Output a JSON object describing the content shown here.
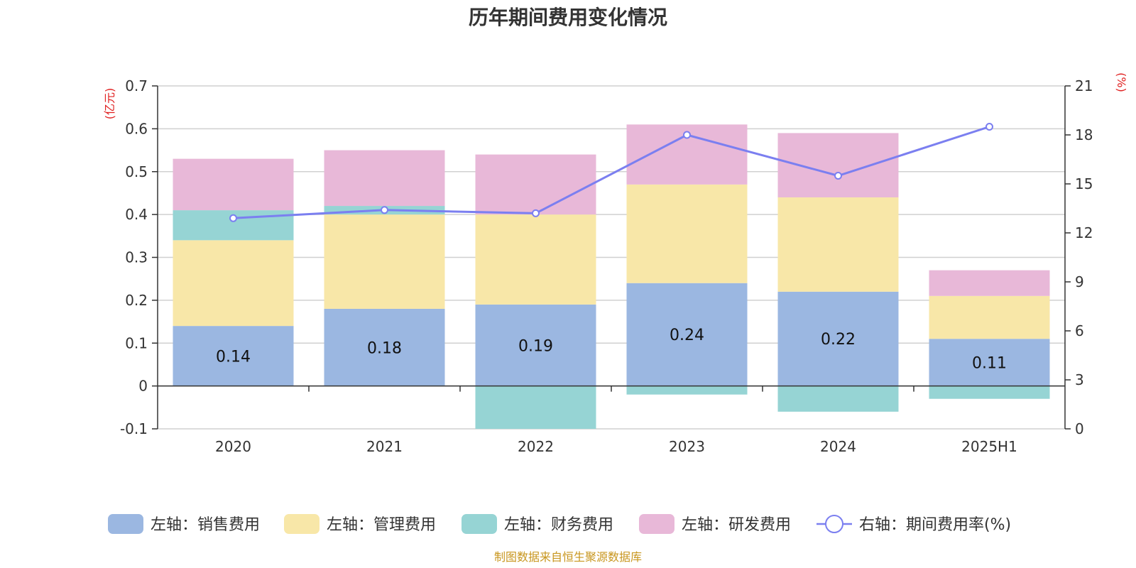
{
  "chart_data": {
    "type": "bar",
    "title": "历年期间费用变化情况",
    "categories": [
      "2020",
      "2021",
      "2022",
      "2023",
      "2024",
      "2025H1"
    ],
    "stacked": true,
    "left_axis": {
      "unit_label": "(亿元)",
      "ylim": [
        -0.1,
        0.7
      ],
      "ticks": [
        "-0.1",
        "0",
        "0.1",
        "0.2",
        "0.3",
        "0.4",
        "0.5",
        "0.6",
        "0.7"
      ]
    },
    "right_axis": {
      "unit_label": "(%)",
      "ylim": [
        0,
        21
      ],
      "ticks": [
        "0",
        "3",
        "6",
        "9",
        "12",
        "15",
        "18",
        "21"
      ]
    },
    "series": [
      {
        "name": "左轴：销售费用",
        "axis": "left",
        "color": "#9bb7e1",
        "values": [
          0.14,
          0.18,
          0.19,
          0.24,
          0.22,
          0.11
        ],
        "labels": [
          "0.14",
          "0.18",
          "0.19",
          "0.24",
          "0.22",
          "0.11"
        ]
      },
      {
        "name": "左轴：管理费用",
        "axis": "left",
        "color": "#f8e7a8",
        "values": [
          0.2,
          0.22,
          0.21,
          0.23,
          0.22,
          0.1
        ]
      },
      {
        "name": "左轴：财务费用",
        "axis": "left",
        "color": "#96d4d4",
        "values": [
          0.07,
          0.02,
          -0.1,
          -0.02,
          -0.06,
          -0.03
        ]
      },
      {
        "name": "左轴：研发费用",
        "axis": "left",
        "color": "#e8b8d8",
        "values": [
          0.12,
          0.13,
          0.14,
          0.14,
          0.15,
          0.06
        ]
      },
      {
        "name": "右轴：期间费用率(%)",
        "axis": "right",
        "type": "line",
        "color": "#7b7ff0",
        "values": [
          12.9,
          13.4,
          13.2,
          18.0,
          15.5,
          18.5
        ]
      }
    ],
    "grid": true,
    "legend_position": "bottom",
    "source": "制图数据来自恒生聚源数据库"
  }
}
